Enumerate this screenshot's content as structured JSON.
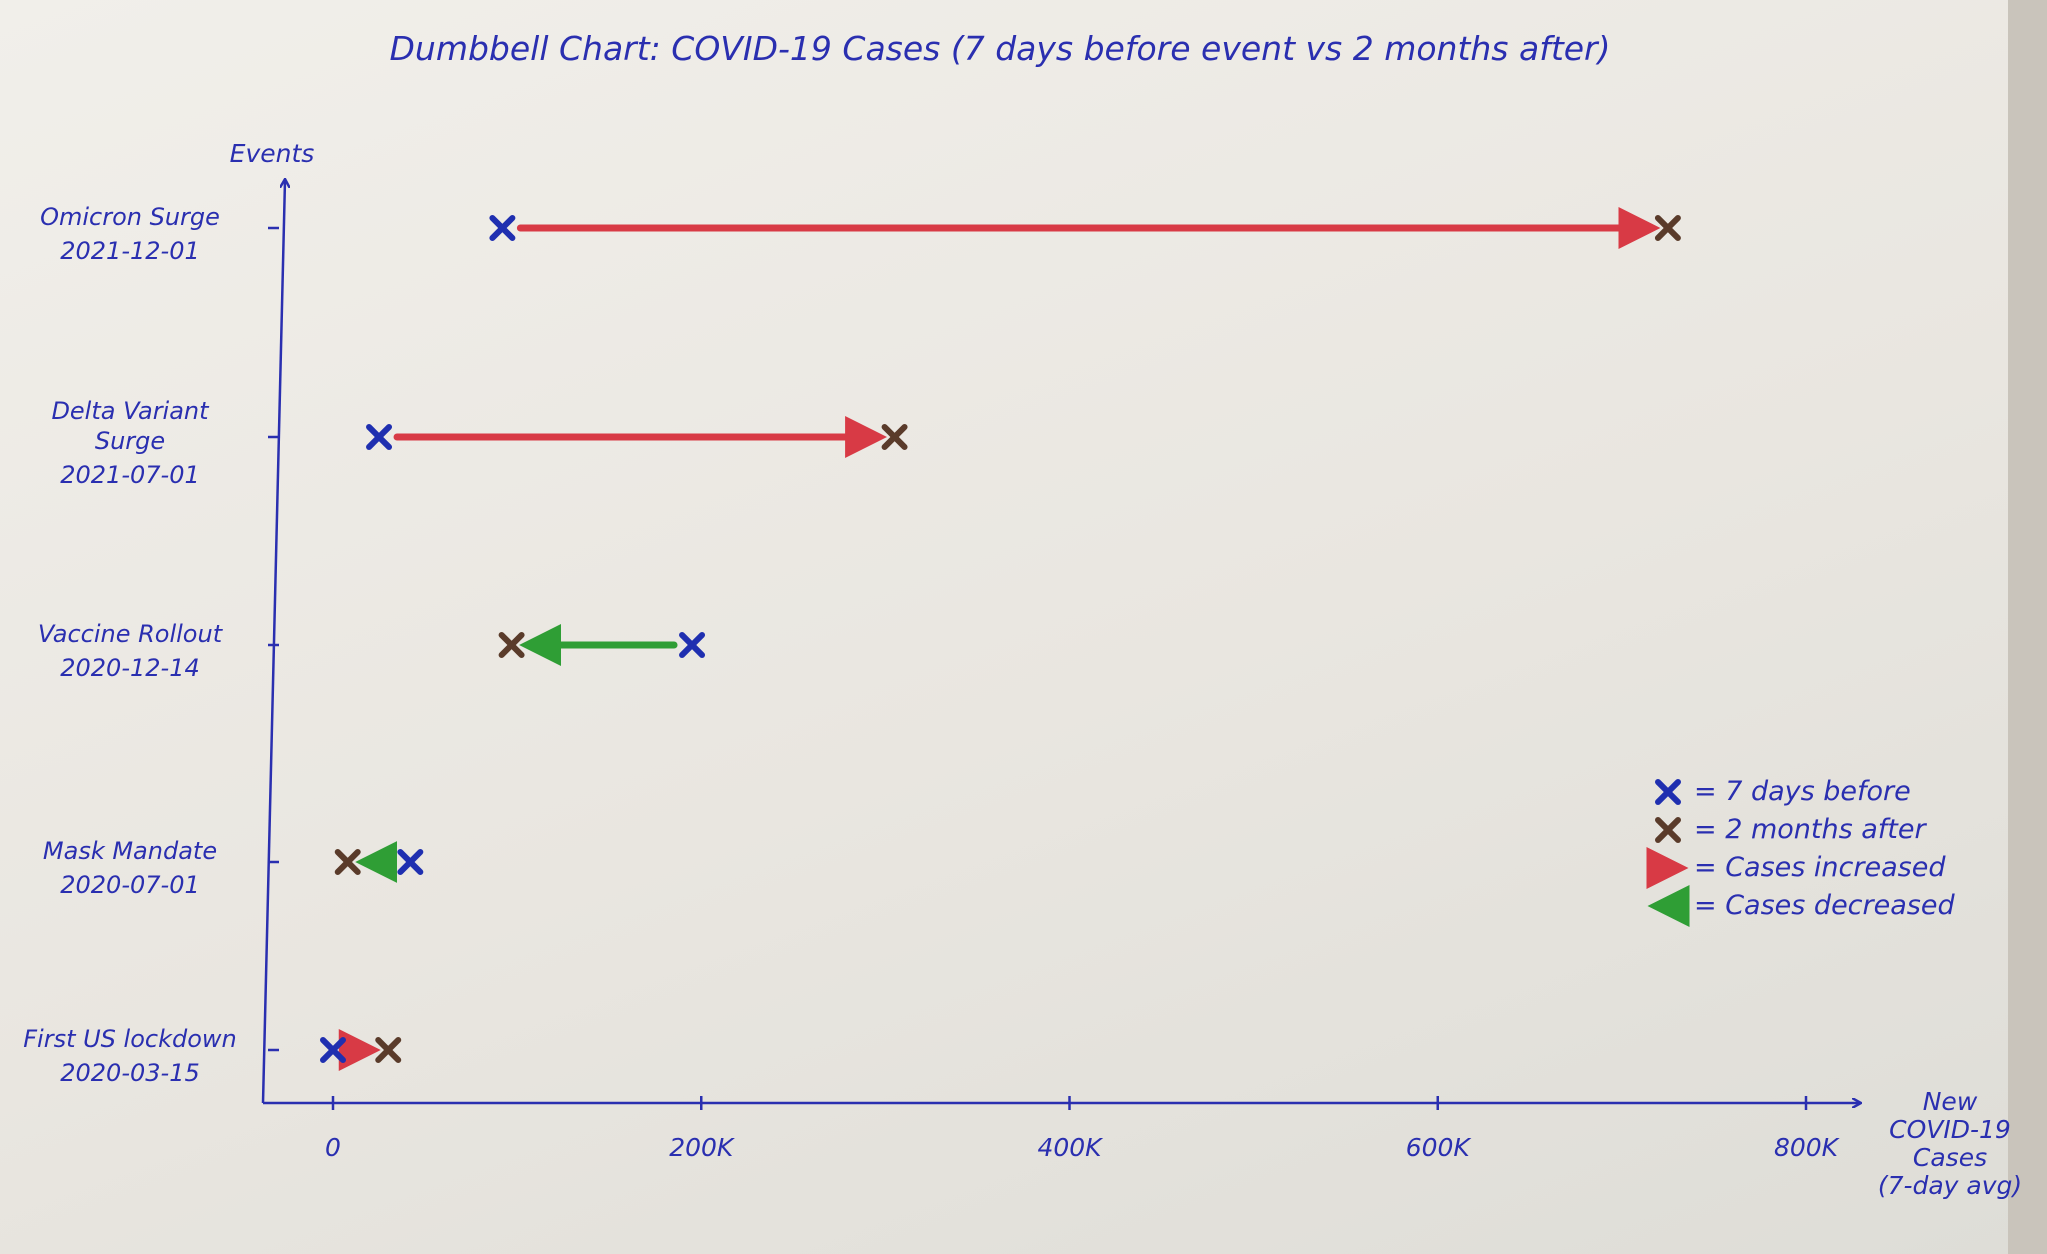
{
  "colors": {
    "ink": "#2a2fb0",
    "before_marker": "#1f2fb0",
    "after_marker": "#5a3b2a",
    "increase": "#d83a45",
    "decrease": "#2f9e35"
  },
  "chart_data": {
    "type": "dumbbell",
    "title": "Dumbbell Chart: COVID-19 Cases (7 days before event vs 2 months after)",
    "ylabel": "Events",
    "xlabel": "New COVID-19 Cases (7-day avg)",
    "xlabel_lines": [
      "New",
      "COVID-19",
      "Cases",
      "(7-day avg)"
    ],
    "xlim": [
      0,
      800000
    ],
    "x_ticks": [
      {
        "value": 0,
        "label": "0"
      },
      {
        "value": 200000,
        "label": "200K"
      },
      {
        "value": 400000,
        "label": "400K"
      },
      {
        "value": 600000,
        "label": "600K"
      },
      {
        "value": 800000,
        "label": "800K"
      }
    ],
    "grid": false,
    "legend_position": "right",
    "events": [
      {
        "name": "Omicron Surge",
        "name_lines": [
          "Omicron Surge"
        ],
        "date": "2021-12-01",
        "before": 92000,
        "after": 725000
      },
      {
        "name": "Delta Variant Surge",
        "name_lines": [
          "Delta Variant",
          "Surge"
        ],
        "date": "2021-07-01",
        "before": 25000,
        "after": 305000
      },
      {
        "name": "Vaccine Rollout",
        "name_lines": [
          "Vaccine Rollout"
        ],
        "date": "2020-12-14",
        "before": 195000,
        "after": 97000
      },
      {
        "name": "Mask Mandate",
        "name_lines": [
          "Mask Mandate"
        ],
        "date": "2020-07-01",
        "before": 42000,
        "after": 8000
      },
      {
        "name": "First US lockdown",
        "name_lines": [
          "First US lockdown"
        ],
        "date": "2020-03-15",
        "before": 0,
        "after": 30000
      }
    ],
    "legend": [
      {
        "symbol": "before",
        "text": "= 7 days before"
      },
      {
        "symbol": "after",
        "text": "= 2 months after"
      },
      {
        "symbol": "increase",
        "text": "= Cases increased"
      },
      {
        "symbol": "decrease",
        "text": "= Cases decreased"
      }
    ]
  }
}
